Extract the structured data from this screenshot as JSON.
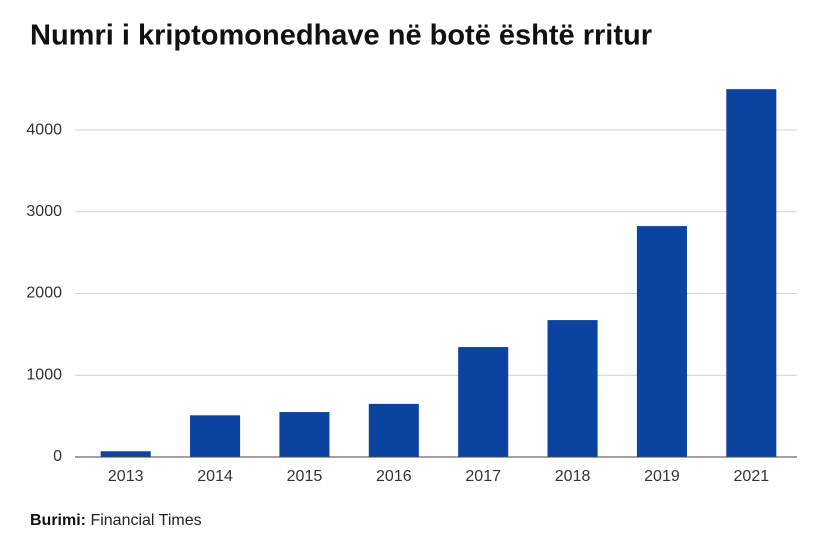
{
  "chart_data": {
    "type": "bar",
    "title": "Numri i kriptomonedhave në botë është rritur",
    "categories": [
      "2013",
      "2014",
      "2015",
      "2016",
      "2017",
      "2018",
      "2019",
      "2021"
    ],
    "values": [
      70,
      510,
      550,
      650,
      1345,
      1675,
      2825,
      4500
    ],
    "color": "#0a43a0",
    "ylim": [
      0,
      4600
    ],
    "yticks": [
      0,
      1000,
      2000,
      3000,
      4000
    ],
    "grid": true,
    "source_label": "Burimi:",
    "source": "Financial Times"
  }
}
